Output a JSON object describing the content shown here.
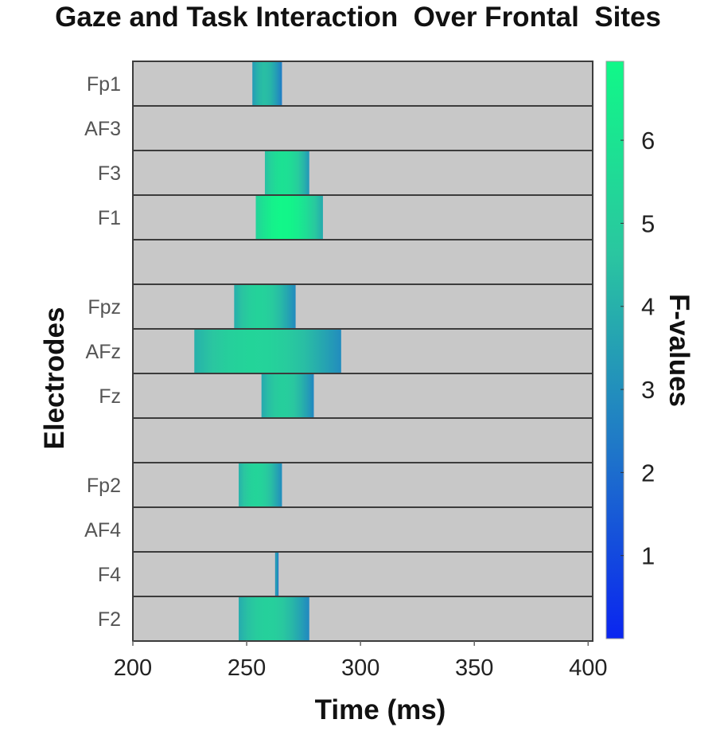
{
  "chart_data": {
    "type": "heatmap",
    "title": "Gaze and Task Interaction  Over Frontal  Sites",
    "xlabel": "Time (ms)",
    "ylabel": "Electrodes",
    "xlim": [
      200,
      402
    ],
    "xticks": [
      200,
      250,
      300,
      350,
      400
    ],
    "colorbar": {
      "label": "F-values",
      "range": [
        0,
        6.95
      ],
      "ticks": [
        1,
        2,
        3,
        4,
        5,
        6
      ],
      "colors": [
        "#0a25f0",
        "#1f78c8",
        "#2ac6a0",
        "#11f888"
      ]
    },
    "background_color": "#c8c8c8",
    "rows": [
      {
        "label": "Fp1",
        "spans": [
          {
            "start": 252.5,
            "end": 265.5,
            "peak": 4.4
          }
        ]
      },
      {
        "label": "AF3",
        "spans": []
      },
      {
        "label": "F3",
        "spans": [
          {
            "start": 258,
            "end": 277.5,
            "peak": 5.9
          }
        ]
      },
      {
        "label": "F1",
        "spans": [
          {
            "start": 254,
            "end": 283.5,
            "peak": 6.9
          }
        ]
      },
      {
        "label": "",
        "spans": []
      },
      {
        "label": "Fpz",
        "spans": [
          {
            "start": 244.5,
            "end": 271.5,
            "peak": 5.2
          }
        ]
      },
      {
        "label": "AFz",
        "spans": [
          {
            "start": 227,
            "end": 291.5,
            "peak": 5.3
          }
        ]
      },
      {
        "label": "Fz",
        "spans": [
          {
            "start": 256.5,
            "end": 279.5,
            "peak": 5.0
          }
        ]
      },
      {
        "label": "",
        "spans": []
      },
      {
        "label": "Fp2",
        "spans": [
          {
            "start": 246.5,
            "end": 265.5,
            "peak": 5.3
          }
        ]
      },
      {
        "label": "AF4",
        "spans": []
      },
      {
        "label": "F4",
        "spans": [
          {
            "start": 262.5,
            "end": 264,
            "peak": 3.5
          }
        ]
      },
      {
        "label": "F2",
        "spans": [
          {
            "start": 246.5,
            "end": 277.5,
            "peak": 5.1
          }
        ]
      }
    ]
  }
}
